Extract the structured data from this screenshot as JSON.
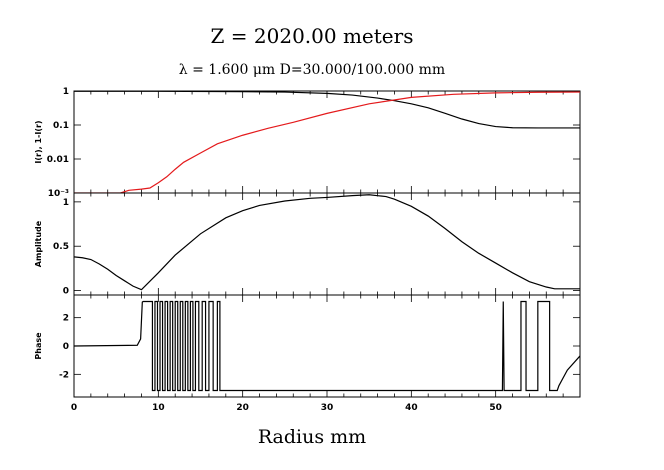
{
  "title": "Z = 2020.00 meters",
  "subtitle": "λ = 1.600 μm   D=30.000/100.000 mm",
  "xlabel": "Radius mm",
  "chart_data": [
    {
      "panel": "intensity",
      "type": "line",
      "ylabel": "I(r), 1-I(r)",
      "yscale": "log",
      "xlim": [
        0,
        60
      ],
      "ylim": [
        0.001,
        1
      ],
      "yticks": [
        "10⁻³",
        "0.01",
        "0.1",
        "1"
      ],
      "ytick_values": [
        0.001,
        0.01,
        0.1,
        1
      ],
      "series": [
        {
          "color": "#000000",
          "x": [
            0,
            10,
            20,
            25,
            30,
            33,
            36,
            38,
            40,
            42,
            44,
            46,
            48,
            50,
            52,
            55,
            60
          ],
          "y": [
            0.98,
            0.98,
            0.96,
            0.93,
            0.85,
            0.76,
            0.62,
            0.52,
            0.42,
            0.32,
            0.22,
            0.15,
            0.11,
            0.09,
            0.083,
            0.082,
            0.082
          ]
        },
        {
          "color": "#e41a1c",
          "x": [
            0,
            5.5,
            6.5,
            8,
            9,
            10,
            11,
            12,
            13,
            15,
            17,
            20,
            23,
            26,
            30,
            35,
            40,
            45,
            50,
            55,
            60
          ],
          "y": [
            0.001,
            0.001,
            0.0012,
            0.0013,
            0.0014,
            0.002,
            0.003,
            0.005,
            0.008,
            0.015,
            0.028,
            0.05,
            0.08,
            0.12,
            0.22,
            0.42,
            0.65,
            0.8,
            0.88,
            0.92,
            0.93
          ]
        }
      ]
    },
    {
      "panel": "amplitude",
      "type": "line",
      "ylabel": "Amplitude",
      "xlim": [
        0,
        60
      ],
      "ylim": [
        -0.05,
        1.1
      ],
      "yticks": [
        "0",
        "0.5",
        "1"
      ],
      "ytick_values": [
        0,
        0.5,
        1
      ],
      "series": [
        {
          "color": "#000000",
          "x": [
            0,
            1,
            2,
            3,
            4,
            5,
            6,
            7,
            8,
            10,
            12,
            15,
            18,
            20,
            22,
            25,
            28,
            30,
            33,
            35,
            36,
            37,
            38,
            40,
            42,
            44,
            46,
            48,
            50,
            52,
            54,
            56,
            57,
            58,
            60
          ],
          "y": [
            0.38,
            0.37,
            0.35,
            0.3,
            0.24,
            0.17,
            0.11,
            0.05,
            0.01,
            0.2,
            0.4,
            0.64,
            0.82,
            0.9,
            0.96,
            1.01,
            1.04,
            1.05,
            1.07,
            1.08,
            1.07,
            1.06,
            1.03,
            0.95,
            0.84,
            0.7,
            0.55,
            0.42,
            0.31,
            0.2,
            0.1,
            0.04,
            0.02,
            0.02,
            0.02
          ]
        }
      ]
    },
    {
      "panel": "phase",
      "type": "line",
      "ylabel": "Phase",
      "xlim": [
        0,
        60
      ],
      "ylim": [
        -3.6,
        3.6
      ],
      "yticks": [
        "-2",
        "0",
        "2"
      ],
      "ytick_values": [
        -2,
        0,
        2
      ],
      "xticks": [
        "0",
        "10",
        "20",
        "30",
        "40",
        "50"
      ],
      "xtick_values": [
        0,
        10,
        20,
        30,
        40,
        50
      ],
      "series": [
        {
          "color": "#000000",
          "x": [
            0,
            7.5,
            7.9,
            8.1,
            8.2,
            9.3,
            9.3,
            9.6,
            9.6,
            9.9,
            9.9,
            10.2,
            10.2,
            10.5,
            10.5,
            10.8,
            10.8,
            11.1,
            11.1,
            11.4,
            11.4,
            11.7,
            11.7,
            12.0,
            12.0,
            12.3,
            12.3,
            12.6,
            12.6,
            12.9,
            12.9,
            13.2,
            13.2,
            13.5,
            13.5,
            13.8,
            13.8,
            14.1,
            14.1,
            14.4,
            14.4,
            14.8,
            14.8,
            15.2,
            15.2,
            15.6,
            15.6,
            16.0,
            16.0,
            16.5,
            16.5,
            17.0,
            17.0,
            17.3,
            17.3,
            50.8,
            50.9,
            51.0,
            51.1,
            53.0,
            53.0,
            53.6,
            53.6,
            55.0,
            55.0,
            56.4,
            56.4,
            57.3,
            57.5,
            58.5,
            60
          ],
          "y": [
            0.0,
            0.05,
            0.5,
            3.1,
            3.14,
            3.14,
            -3.14,
            -3.14,
            3.14,
            3.14,
            -3.14,
            -3.14,
            3.14,
            3.14,
            -3.14,
            -3.14,
            3.14,
            3.14,
            -3.14,
            -3.14,
            3.14,
            3.14,
            -3.14,
            -3.14,
            3.14,
            3.14,
            -3.14,
            -3.14,
            3.14,
            3.14,
            -3.14,
            -3.14,
            3.14,
            3.14,
            -3.14,
            -3.14,
            3.14,
            3.14,
            -3.14,
            -3.14,
            3.14,
            3.14,
            -3.14,
            -3.14,
            3.14,
            3.14,
            -3.14,
            -3.14,
            3.14,
            3.14,
            -3.14,
            -3.14,
            3.14,
            3.14,
            -3.14,
            -3.14,
            3.14,
            -3.14,
            -3.14,
            -3.14,
            3.14,
            3.14,
            -3.14,
            -3.14,
            3.14,
            3.14,
            -3.14,
            -3.14,
            -2.8,
            -1.7,
            -0.7
          ]
        }
      ]
    }
  ]
}
